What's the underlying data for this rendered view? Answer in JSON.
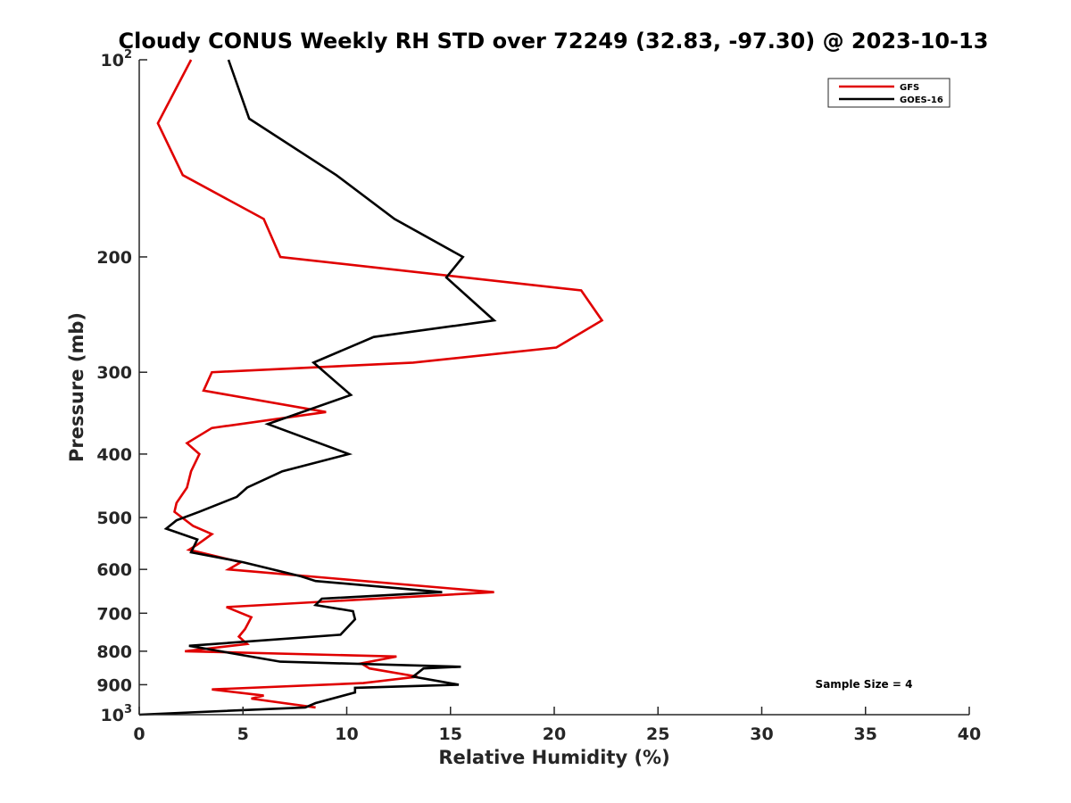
{
  "chart_data": {
    "type": "line",
    "title": "Cloudy CONUS Weekly RH STD over 72249 (32.83, -97.30) @ 2023-10-13",
    "xlabel": "Relative Humidity (%)",
    "ylabel": "Pressure (mb)",
    "xlim": [
      0,
      40
    ],
    "ylim": [
      1000,
      100
    ],
    "y_scale": "log",
    "y_reversed": true,
    "x_ticks": [
      0,
      5,
      10,
      15,
      20,
      25,
      30,
      35,
      40
    ],
    "y_ticks": [
      100,
      200,
      300,
      400,
      500,
      600,
      700,
      800,
      900,
      1000
    ],
    "y_tick_labels": [
      {
        "base": "10",
        "exp": "2"
      },
      {
        "base": "200"
      },
      {
        "base": "300"
      },
      {
        "base": "400"
      },
      {
        "base": "500"
      },
      {
        "base": "600"
      },
      {
        "base": "700"
      },
      {
        "base": "800"
      },
      {
        "base": "900"
      },
      {
        "base": "10",
        "exp": "3"
      }
    ],
    "grid": false,
    "legend_position": "top-right",
    "annotation": "Sample Size = 4",
    "series": [
      {
        "name": "GFS",
        "color": "#e00000",
        "points": [
          [
            2.5,
            100
          ],
          [
            0.9,
            125
          ],
          [
            2.1,
            150
          ],
          [
            6.0,
            175
          ],
          [
            6.8,
            200
          ],
          [
            21.3,
            225
          ],
          [
            22.3,
            250
          ],
          [
            20.1,
            275
          ],
          [
            13.2,
            290
          ],
          [
            3.5,
            300
          ],
          [
            3.1,
            320
          ],
          [
            9.0,
            345
          ],
          [
            3.5,
            365
          ],
          [
            2.3,
            385
          ],
          [
            2.9,
            400
          ],
          [
            2.5,
            425
          ],
          [
            2.3,
            450
          ],
          [
            1.8,
            475
          ],
          [
            1.7,
            490
          ],
          [
            2.6,
            515
          ],
          [
            3.5,
            530
          ],
          [
            2.8,
            550
          ],
          [
            2.4,
            560
          ],
          [
            4.9,
            585
          ],
          [
            4.3,
            600
          ],
          [
            17.1,
            650
          ],
          [
            4.2,
            685
          ],
          [
            5.4,
            710
          ],
          [
            5.1,
            740
          ],
          [
            4.8,
            760
          ],
          [
            5.2,
            780
          ],
          [
            2.2,
            800
          ],
          [
            12.4,
            815
          ],
          [
            10.7,
            835
          ],
          [
            11.1,
            850
          ],
          [
            13.4,
            875
          ],
          [
            10.8,
            895
          ],
          [
            3.5,
            915
          ],
          [
            6.0,
            935
          ],
          [
            5.4,
            945
          ],
          [
            8.5,
            975
          ]
        ]
      },
      {
        "name": "GOES-16",
        "color": "#000000",
        "points": [
          [
            4.3,
            100
          ],
          [
            5.3,
            123
          ],
          [
            9.5,
            150
          ],
          [
            12.3,
            175
          ],
          [
            15.6,
            200
          ],
          [
            14.8,
            215
          ],
          [
            17.1,
            250
          ],
          [
            11.3,
            265
          ],
          [
            8.4,
            290
          ],
          [
            10.2,
            325
          ],
          [
            6.2,
            360
          ],
          [
            10.1,
            400
          ],
          [
            6.9,
            425
          ],
          [
            5.2,
            450
          ],
          [
            4.7,
            465
          ],
          [
            2.9,
            490
          ],
          [
            1.8,
            505
          ],
          [
            1.3,
            520
          ],
          [
            2.8,
            540
          ],
          [
            2.5,
            565
          ],
          [
            5.0,
            585
          ],
          [
            7.8,
            615
          ],
          [
            8.5,
            625
          ],
          [
            14.6,
            650
          ],
          [
            8.8,
            665
          ],
          [
            8.5,
            680
          ],
          [
            10.3,
            695
          ],
          [
            10.4,
            715
          ],
          [
            9.7,
            755
          ],
          [
            2.4,
            785
          ],
          [
            6.8,
            830
          ],
          [
            15.5,
            845
          ],
          [
            13.7,
            850
          ],
          [
            13.2,
            875
          ],
          [
            15.4,
            900
          ],
          [
            10.4,
            910
          ],
          [
            10.4,
            925
          ],
          [
            8.5,
            960
          ],
          [
            8.0,
            975
          ],
          [
            0,
            1000
          ]
        ]
      }
    ]
  }
}
